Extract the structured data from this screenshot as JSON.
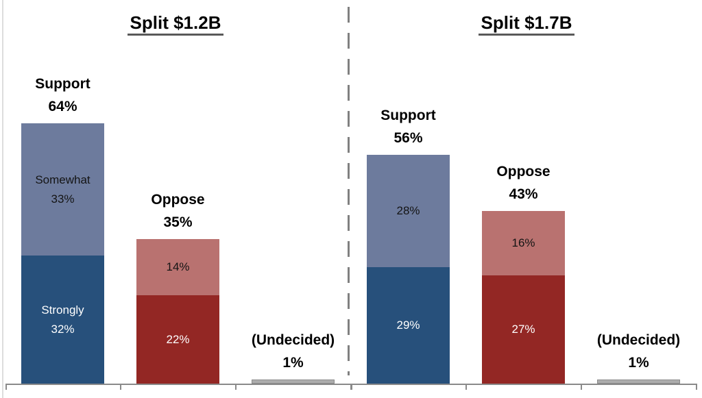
{
  "figure": {
    "background": "#ffffff",
    "axis_color": "#8a8a8a",
    "divider_color": "#808080",
    "panels": [
      {
        "title": "Split $1.2B",
        "groups": [
          {
            "name": "support",
            "total_label_lines": [
              "Support",
              "64%"
            ],
            "segments": [
              {
                "position": "top",
                "label_lines": [
                  "Somewhat",
                  "33%"
                ],
                "value": 33,
                "color": "#6d7b9d",
                "text_color": "#141414"
              },
              {
                "position": "bottom",
                "label_lines": [
                  "Strongly",
                  "32%"
                ],
                "value": 32,
                "color": "#27507b",
                "text_color": "#ffffff"
              }
            ]
          },
          {
            "name": "oppose",
            "total_label_lines": [
              "Oppose",
              "35%"
            ],
            "segments": [
              {
                "position": "top",
                "label_lines": [
                  "14%"
                ],
                "value": 14,
                "color": "#b97270",
                "text_color": "#141414"
              },
              {
                "position": "bottom",
                "label_lines": [
                  "22%"
                ],
                "value": 22,
                "color": "#932724",
                "text_color": "#ffffff"
              }
            ]
          },
          {
            "name": "undecided",
            "total_label_lines": [
              "(Undecided)",
              "1%"
            ],
            "segments": [
              {
                "position": "only",
                "label_lines": [],
                "value": 1,
                "color": "#adadad",
                "border": "#8a8a8a",
                "text_color": "#141414"
              }
            ]
          }
        ]
      },
      {
        "title": "Split $1.7B",
        "groups": [
          {
            "name": "support",
            "total_label_lines": [
              "Support",
              "56%"
            ],
            "segments": [
              {
                "position": "top",
                "label_lines": [
                  "28%"
                ],
                "value": 28,
                "color": "#6d7b9d",
                "text_color": "#141414"
              },
              {
                "position": "bottom",
                "label_lines": [
                  "29%"
                ],
                "value": 29,
                "color": "#27507b",
                "text_color": "#ffffff"
              }
            ]
          },
          {
            "name": "oppose",
            "total_label_lines": [
              "Oppose",
              "43%"
            ],
            "segments": [
              {
                "position": "top",
                "label_lines": [
                  "16%"
                ],
                "value": 16,
                "color": "#b97270",
                "text_color": "#141414"
              },
              {
                "position": "bottom",
                "label_lines": [
                  "27%"
                ],
                "value": 27,
                "color": "#932724",
                "text_color": "#ffffff"
              }
            ]
          },
          {
            "name": "undecided",
            "total_label_lines": [
              "(Undecided)",
              "1%"
            ],
            "segments": [
              {
                "position": "only",
                "label_lines": [],
                "value": 1,
                "color": "#adadad",
                "border": "#8a8a8a",
                "text_color": "#141414"
              }
            ]
          }
        ]
      }
    ]
  },
  "chart_data": [
    {
      "type": "bar",
      "stacked": true,
      "title": "Split $1.2B",
      "categories": [
        "Support",
        "Oppose",
        "(Undecided)"
      ],
      "series": [
        {
          "name": "bottom segment (Strongly)",
          "values": [
            32,
            22,
            1
          ]
        },
        {
          "name": "top segment (Somewhat)",
          "values": [
            33,
            14,
            0
          ]
        }
      ],
      "totals": [
        64,
        35,
        1
      ],
      "value_unit": "%",
      "ylim": [
        0,
        100
      ],
      "grid": false,
      "legend": false
    },
    {
      "type": "bar",
      "stacked": true,
      "title": "Split $1.7B",
      "categories": [
        "Support",
        "Oppose",
        "(Undecided)"
      ],
      "series": [
        {
          "name": "bottom segment",
          "values": [
            29,
            27,
            1
          ]
        },
        {
          "name": "top segment",
          "values": [
            28,
            16,
            0
          ]
        }
      ],
      "totals": [
        56,
        43,
        1
      ],
      "value_unit": "%",
      "ylim": [
        0,
        100
      ],
      "grid": false,
      "legend": false
    }
  ]
}
